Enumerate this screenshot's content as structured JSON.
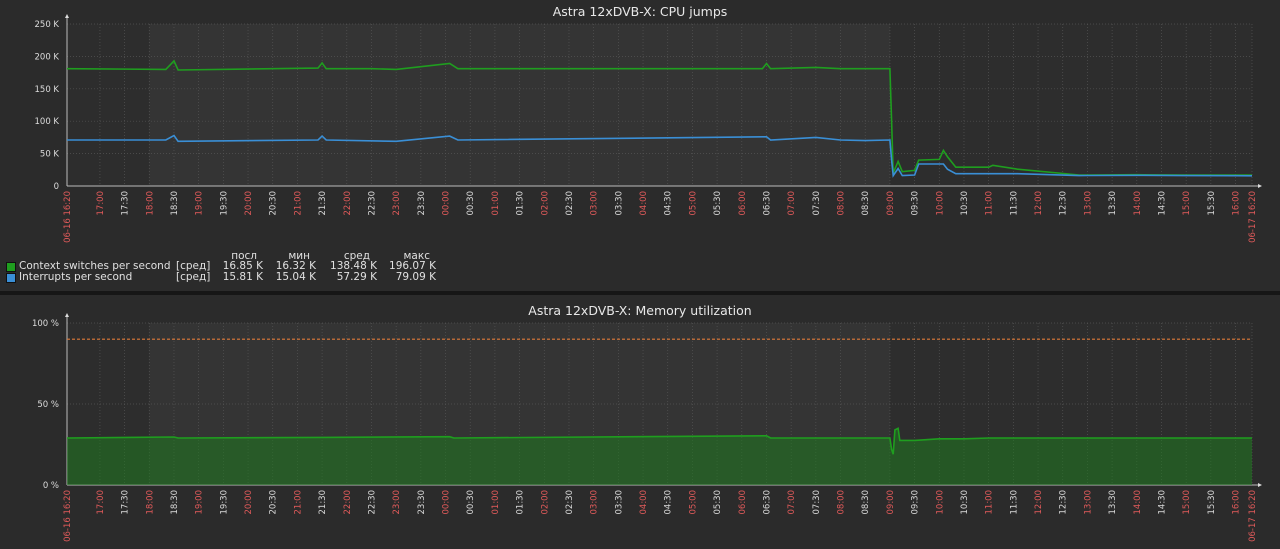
{
  "charts": [
    {
      "title": "Astra 12xDVB-X: CPU jumps",
      "legend_header": {
        "last": "посл",
        "min": "мин",
        "avg": "сред",
        "max": "макс"
      },
      "legend_rows": [
        {
          "name": "Context switches per second",
          "func": "[сред]",
          "last": "16.85 K",
          "min": "16.32 K",
          "avg": "138.48 K",
          "max": "196.07 K"
        },
        {
          "name": "Interrupts per second",
          "func": "[сред]",
          "last": "15.81 K",
          "min": "15.04 K",
          "avg": "57.29 K",
          "max": "79.09 K"
        }
      ]
    },
    {
      "title": "Astra 12xDVB-X: Memory utilization"
    }
  ],
  "chart_data": [
    {
      "type": "line",
      "title": "Astra 12xDVB-X: CPU jumps",
      "x_start": "06-16 16:20",
      "x_end": "06-17 16:20",
      "x_ticks": [
        "06-16 16:20",
        "17:00",
        "17:30",
        "18:00",
        "18:30",
        "19:00",
        "19:30",
        "20:00",
        "20:30",
        "21:00",
        "21:30",
        "22:00",
        "22:30",
        "23:00",
        "23:30",
        "00:00",
        "00:30",
        "01:00",
        "01:30",
        "02:00",
        "02:30",
        "03:00",
        "03:30",
        "04:00",
        "04:30",
        "05:00",
        "05:30",
        "06:00",
        "06:30",
        "07:00",
        "07:30",
        "08:00",
        "08:30",
        "09:00",
        "09:30",
        "10:00",
        "10:30",
        "11:00",
        "11:30",
        "12:00",
        "12:30",
        "13:00",
        "13:30",
        "14:00",
        "14:30",
        "15:00",
        "15:30",
        "16:00",
        "06-17 16:20"
      ],
      "y_ticks": [
        "0",
        "50 K",
        "100 K",
        "150 K",
        "200 K",
        "250 K"
      ],
      "ylim": [
        0,
        250000
      ],
      "series": [
        {
          "name": "Context switches per second",
          "color": "#1f9e1f",
          "points": [
            [
              "06-16 16:20",
              181000
            ],
            [
              "18:20",
              180000
            ],
            [
              "18:30",
              193000
            ],
            [
              "18:35",
              179000
            ],
            [
              "21:25",
              182000
            ],
            [
              "21:30",
              190000
            ],
            [
              "21:35",
              181000
            ],
            [
              "22:30",
              181000
            ],
            [
              "23:00",
              180000
            ],
            [
              "00:05",
              189000
            ],
            [
              "00:15",
              181000
            ],
            [
              "06:25",
              181000
            ],
            [
              "06:30",
              189000
            ],
            [
              "06:35",
              181000
            ],
            [
              "07:30",
              183000
            ],
            [
              "08:00",
              181000
            ],
            [
              "08:30",
              181000
            ],
            [
              "09:00",
              181000
            ],
            [
              "09:02",
              100000
            ],
            [
              "09:04",
              20000
            ],
            [
              "09:10",
              38000
            ],
            [
              "09:15",
              22000
            ],
            [
              "09:30",
              24000
            ],
            [
              "09:35",
              40000
            ],
            [
              "10:00",
              41000
            ],
            [
              "10:05",
              55000
            ],
            [
              "10:10",
              45000
            ],
            [
              "10:20",
              29000
            ],
            [
              "11:00",
              29000
            ],
            [
              "11:05",
              32000
            ],
            [
              "11:35",
              26000
            ],
            [
              "12:50",
              17000
            ],
            [
              "13:00",
              17000
            ],
            [
              "14:00",
              17500
            ],
            [
              "15:00",
              17000
            ],
            [
              "16:00",
              16900
            ],
            [
              "06-17 16:20",
              16850
            ]
          ]
        },
        {
          "name": "Interrupts per second",
          "color": "#3a8fd6",
          "points": [
            [
              "06-16 16:20",
              71000
            ],
            [
              "18:20",
              71000
            ],
            [
              "18:30",
              78000
            ],
            [
              "18:35",
              69000
            ],
            [
              "21:25",
              71000
            ],
            [
              "21:30",
              77000
            ],
            [
              "21:35",
              71000
            ],
            [
              "23:00",
              69000
            ],
            [
              "00:05",
              77000
            ],
            [
              "00:15",
              71000
            ],
            [
              "06:30",
              76000
            ],
            [
              "06:35",
              71000
            ],
            [
              "07:30",
              75000
            ],
            [
              "08:00",
              71000
            ],
            [
              "08:30",
              70000
            ],
            [
              "09:00",
              71000
            ],
            [
              "09:02",
              40000
            ],
            [
              "09:04",
              16000
            ],
            [
              "09:10",
              27000
            ],
            [
              "09:15",
              16000
            ],
            [
              "09:30",
              17000
            ],
            [
              "09:35",
              34000
            ],
            [
              "10:05",
              34000
            ],
            [
              "10:10",
              26000
            ],
            [
              "10:20",
              19000
            ],
            [
              "11:00",
              19000
            ],
            [
              "11:35",
              19000
            ],
            [
              "12:50",
              16000
            ],
            [
              "13:00",
              16200
            ],
            [
              "14:00",
              16500
            ],
            [
              "15:00",
              16000
            ],
            [
              "16:00",
              15900
            ],
            [
              "06-17 16:20",
              15810
            ]
          ]
        }
      ]
    },
    {
      "type": "area",
      "title": "Astra 12xDVB-X: Memory utilization",
      "x_start": "06-16 16:20",
      "x_end": "06-17 16:20",
      "x_ticks": [
        "06-16 16:20",
        "17:00",
        "17:30",
        "18:00",
        "18:30",
        "19:00",
        "19:30",
        "20:00",
        "20:30",
        "21:00",
        "21:30",
        "22:00",
        "22:30",
        "23:00",
        "23:30",
        "00:00",
        "00:30",
        "01:00",
        "01:30",
        "02:00",
        "02:30",
        "03:00",
        "03:30",
        "04:00",
        "04:30",
        "05:00",
        "05:30",
        "06:00",
        "06:30",
        "07:00",
        "07:30",
        "08:00",
        "08:30",
        "09:00",
        "09:30",
        "10:00",
        "10:30",
        "11:00",
        "11:30",
        "12:00",
        "12:30",
        "13:00",
        "13:30",
        "14:00",
        "14:30",
        "15:00",
        "15:30",
        "16:00",
        "06-17 16:20"
      ],
      "y_ticks": [
        "0 %",
        "50 %",
        "100 %"
      ],
      "ylim": [
        0,
        100
      ],
      "threshold": {
        "value": 90,
        "color": "#e07b39"
      },
      "series": [
        {
          "name": "Memory utilization",
          "color": "#1f9e1f",
          "points": [
            [
              "06-16 16:20",
              29000
            ],
            [
              "18:30",
              29600
            ],
            [
              "18:35",
              29000
            ],
            [
              "21:30",
              29400
            ],
            [
              "00:05",
              29800
            ],
            [
              "00:10",
              29000
            ],
            [
              "06:30",
              30400
            ],
            [
              "06:35",
              29000
            ],
            [
              "09:00",
              29000
            ],
            [
              "09:02",
              22000
            ],
            [
              "09:04",
              19000
            ],
            [
              "09:06",
              34000
            ],
            [
              "09:10",
              35000
            ],
            [
              "09:12",
              27500
            ],
            [
              "09:30",
              27500
            ],
            [
              "10:00",
              28500
            ],
            [
              "10:30",
              28500
            ],
            [
              "11:00",
              29000
            ],
            [
              "06-17 16:20",
              29000
            ]
          ]
        }
      ]
    }
  ]
}
